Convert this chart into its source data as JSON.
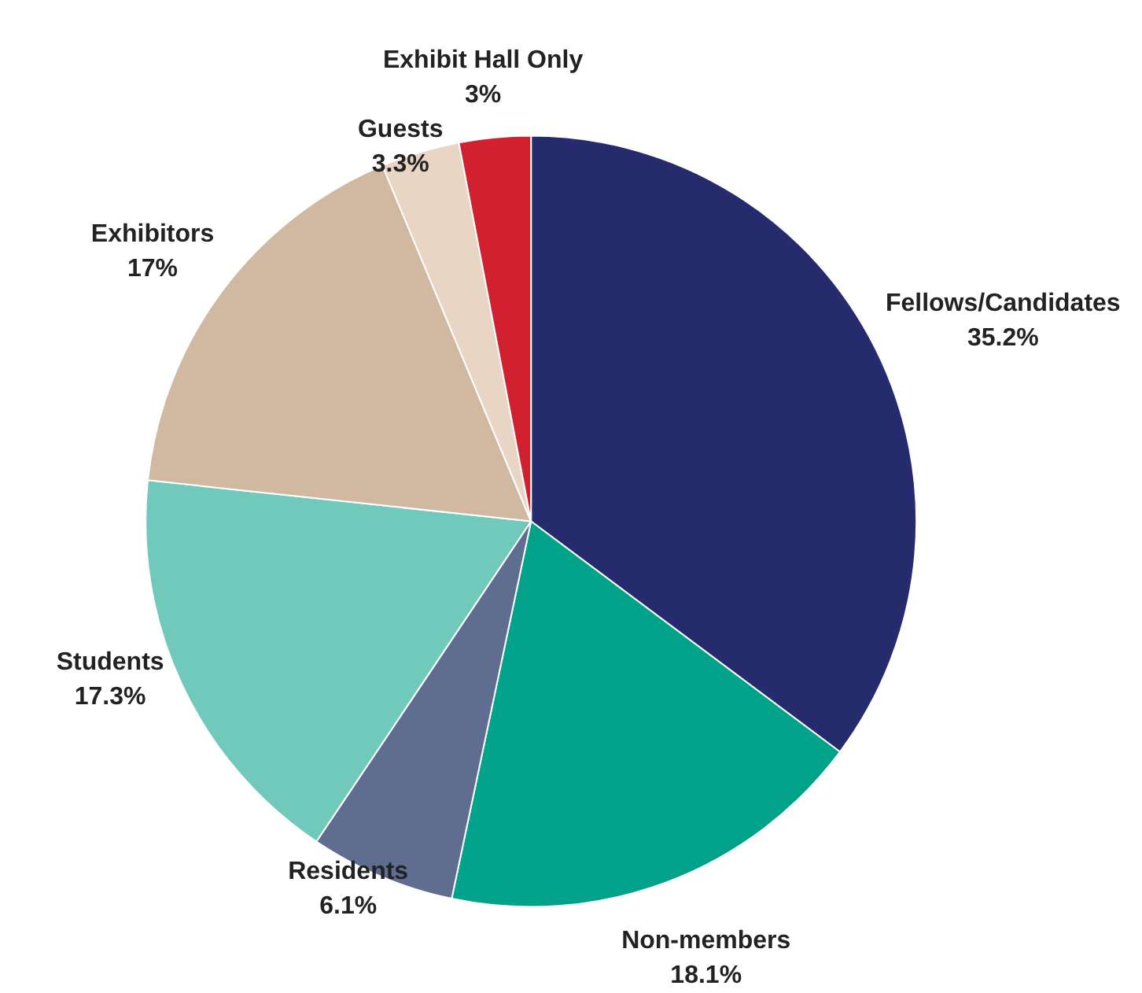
{
  "chart_data": {
    "type": "pie",
    "categories": [
      "Fellows/Candidates",
      "Non-members",
      "Residents",
      "Students",
      "Exhibitors",
      "Guests",
      "Exhibit Hall Only"
    ],
    "values": [
      35.2,
      18.1,
      6.1,
      17.3,
      17,
      3.3,
      3
    ],
    "colors": [
      "#262b6e",
      "#00a38a",
      "#5f6d91",
      "#70c9bb",
      "#d1b8a0",
      "#e8d5c4",
      "#d1202f"
    ],
    "value_labels": [
      "35.2%",
      "18.1%",
      "6.1%",
      "17.3%",
      "17%",
      "3.3%",
      "3%"
    ],
    "legend": false
  }
}
